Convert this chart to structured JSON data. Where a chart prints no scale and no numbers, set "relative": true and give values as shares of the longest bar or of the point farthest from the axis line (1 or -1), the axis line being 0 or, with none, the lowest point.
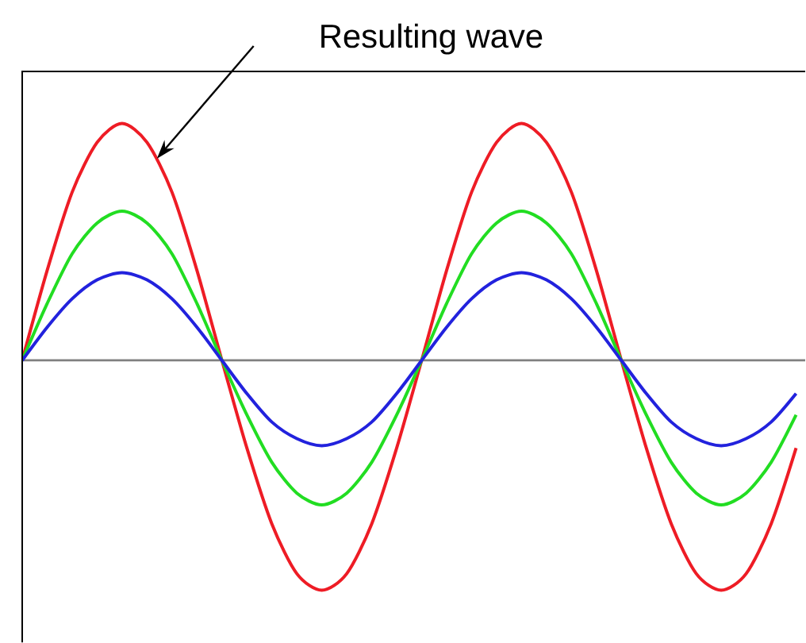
{
  "chart_data": {
    "type": "line",
    "relative": true,
    "annotations": [
      "Resulting wave"
    ],
    "categories": [
      null,
      null,
      null,
      null,
      null,
      null,
      null,
      null,
      null,
      null,
      null,
      null,
      null,
      null,
      null,
      null,
      null,
      null,
      null,
      null,
      null,
      null,
      null,
      null,
      null,
      null,
      null,
      null,
      null,
      null,
      null,
      null
    ],
    "series": [
      {
        "color": "#ee1c25",
        "values": [
          0,
          0.38,
          0.71,
          0.92,
          1,
          0.92,
          0.71,
          0.38,
          0,
          -0.37,
          -0.69,
          -0.9,
          -0.97,
          -0.9,
          -0.69,
          -0.37,
          0,
          0.38,
          0.71,
          0.92,
          1,
          0.92,
          0.71,
          0.38,
          0,
          -0.37,
          -0.69,
          -0.9,
          -0.97,
          -0.9,
          -0.69,
          -0.37
        ]
      },
      {
        "color": "#22dd22",
        "values": [
          0,
          0.24,
          0.45,
          0.58,
          0.63,
          0.58,
          0.45,
          0.24,
          0,
          -0.23,
          -0.43,
          -0.56,
          -0.61,
          -0.56,
          -0.43,
          -0.23,
          0,
          0.24,
          0.45,
          0.58,
          0.63,
          0.58,
          0.45,
          0.24,
          0,
          -0.23,
          -0.43,
          -0.56,
          -0.61,
          -0.56,
          -0.43,
          -0.23
        ]
      },
      {
        "color": "#2222dd",
        "values": [
          0,
          0.14,
          0.26,
          0.34,
          0.37,
          0.34,
          0.26,
          0.14,
          0,
          -0.14,
          -0.26,
          -0.33,
          -0.36,
          -0.33,
          -0.26,
          -0.14,
          0,
          0.14,
          0.26,
          0.34,
          0.37,
          0.34,
          0.26,
          0.14,
          0,
          -0.14,
          -0.26,
          -0.33,
          -0.36,
          -0.33,
          -0.26,
          -0.14
        ]
      }
    ],
    "marker": "none",
    "line_style": "solid"
  }
}
